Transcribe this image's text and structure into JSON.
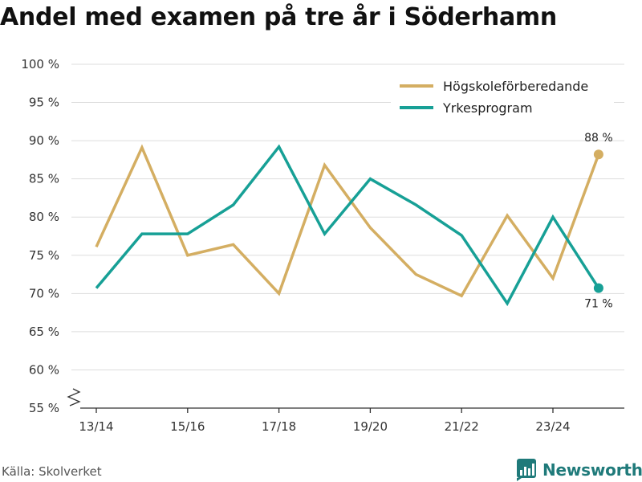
{
  "title": "Andel med examen på tre år i Söderhamn",
  "source": "Källa: Skolverket",
  "brand": "Newsworthy",
  "colors": {
    "Högskoleförberedande": "#d4ae62",
    "Yrkesprogram": "#17a096",
    "grid": "#dddddd",
    "axis": "#333333",
    "brand": "#1f7a7a"
  },
  "chart_data": {
    "type": "line",
    "title": "Andel med examen på tre år i Söderhamn",
    "xlabel": "",
    "ylabel": "",
    "ylim": [
      55,
      100
    ],
    "y_ticks": [
      55,
      60,
      65,
      70,
      75,
      80,
      85,
      90,
      95,
      100
    ],
    "y_tick_suffix": " %",
    "y_axis_break": true,
    "x": [
      "13/14",
      "14/15",
      "15/16",
      "16/17",
      "17/18",
      "18/19",
      "19/20",
      "20/21",
      "21/22",
      "22/23",
      "23/24",
      "24/25"
    ],
    "x_tick_labels": [
      "13/14",
      "15/16",
      "17/18",
      "19/20",
      "21/22",
      "23/24"
    ],
    "legend_position": "top-right",
    "series": [
      {
        "name": "Högskoleförberedande",
        "values": [
          76.1,
          89.1,
          75.0,
          76.4,
          70.0,
          86.8,
          78.6,
          72.5,
          69.7,
          80.2,
          72.0,
          88.2
        ],
        "end_label": "88 %"
      },
      {
        "name": "Yrkesprogram",
        "values": [
          70.7,
          77.8,
          77.8,
          81.6,
          89.2,
          77.8,
          85.0,
          81.6,
          77.6,
          68.7,
          80.0,
          70.7
        ],
        "end_label": "71 %"
      }
    ]
  }
}
